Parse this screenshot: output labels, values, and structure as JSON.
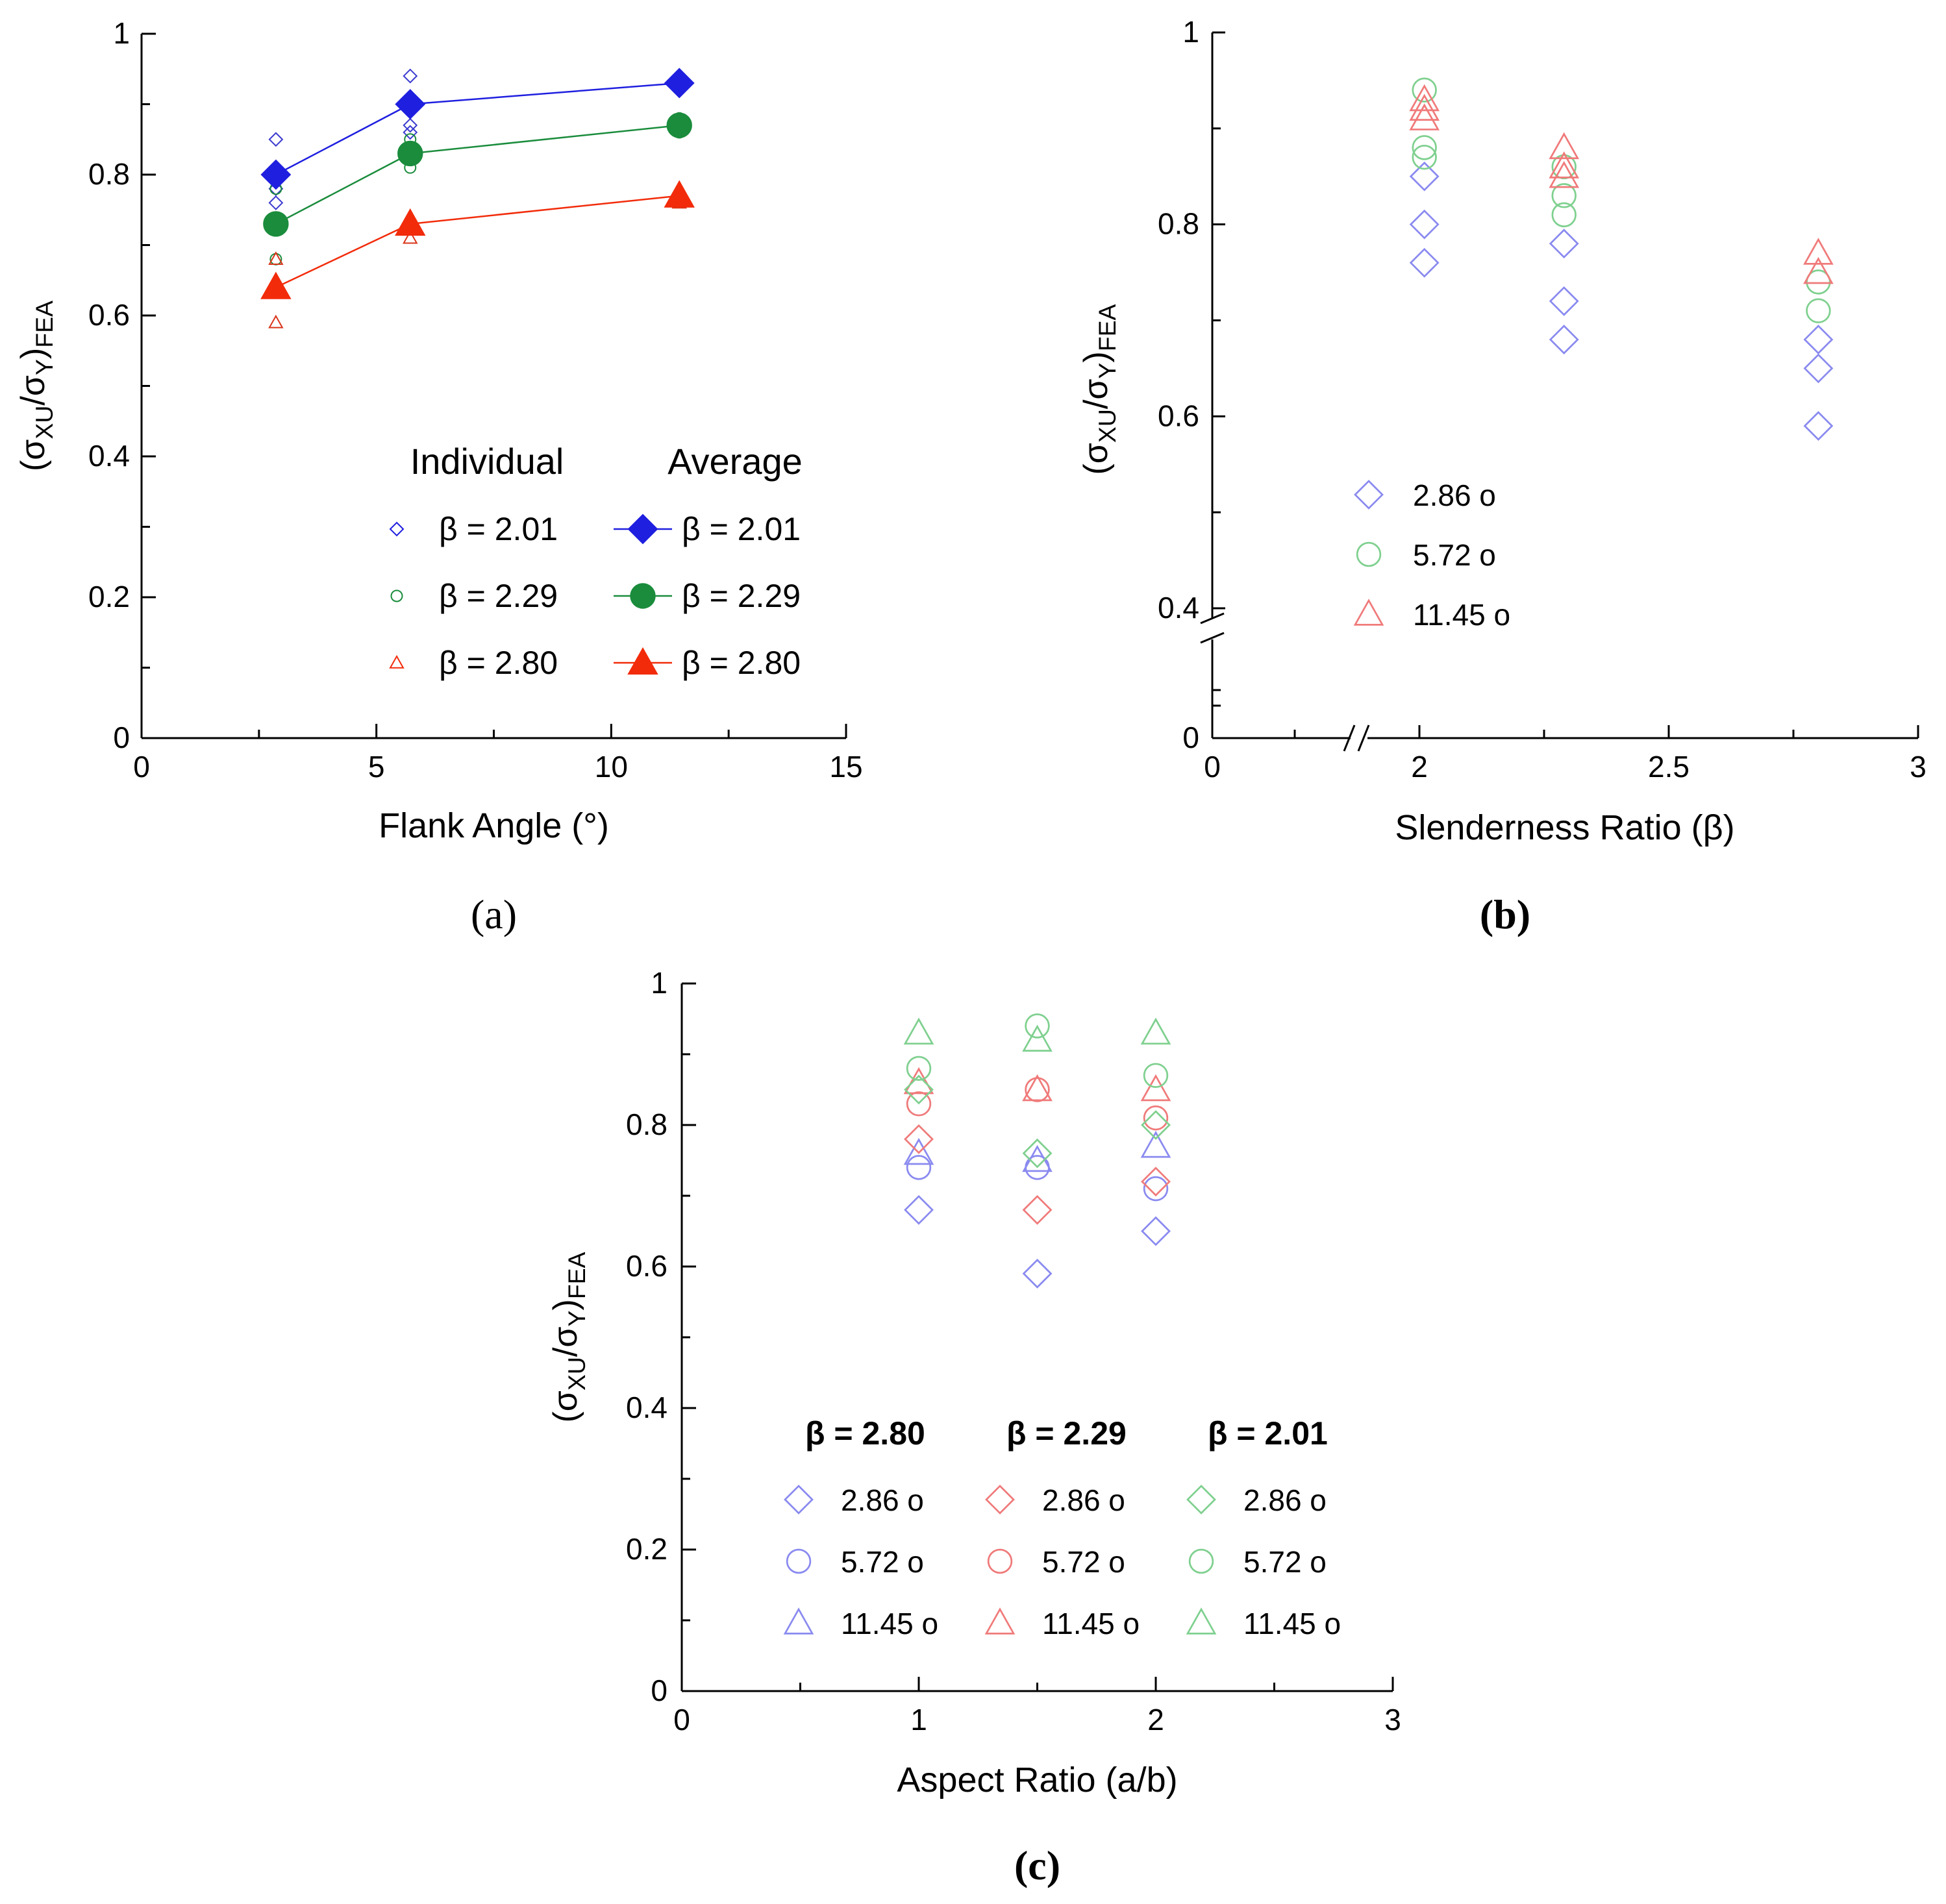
{
  "chart_data": [
    {
      "id": "a",
      "type": "scatter",
      "caption": "(a)",
      "xlabel": "Flank Angle (°)",
      "ylabel_parts": [
        "(σ",
        "XU",
        "/σ",
        "Y",
        ")",
        "FEA"
      ],
      "xlim": [
        0,
        15
      ],
      "ylim": [
        0,
        1
      ],
      "xticks": [
        0,
        5,
        10,
        15
      ],
      "xtick_labels": [
        "0",
        "5",
        "10",
        "15"
      ],
      "yticks": [
        0,
        0.2,
        0.4,
        0.6,
        0.8,
        1
      ],
      "ytick_labels": [
        "0",
        "0.2",
        "0.4",
        "0.6",
        "0.8",
        "1"
      ],
      "legend_headers": [
        "Individual",
        "Average"
      ],
      "legend": [
        {
          "label": "β = 2.01",
          "color": "#1f1fe0",
          "marker": "diamond"
        },
        {
          "label": "β = 2.29",
          "color": "#1a8c3c",
          "marker": "circle"
        },
        {
          "label": "β = 2.80",
          "color": "#f22b0a",
          "marker": "triangle"
        }
      ],
      "series": [
        {
          "name": "β = 2.01 individual",
          "color": "#3b3bd0",
          "marker": "diamond",
          "filled": false,
          "x": [
            2.86,
            2.86,
            2.86,
            5.72,
            5.72,
            5.72,
            11.45,
            11.45
          ],
          "y": [
            0.85,
            0.78,
            0.76,
            0.94,
            0.87,
            0.86,
            0.93,
            0.92
          ]
        },
        {
          "name": "β = 2.29 individual",
          "color": "#1a8c3c",
          "marker": "circle",
          "filled": false,
          "x": [
            2.86,
            2.86,
            5.72,
            5.72,
            5.72,
            11.45,
            11.45,
            11.45
          ],
          "y": [
            0.78,
            0.68,
            0.85,
            0.83,
            0.81,
            0.88,
            0.87,
            0.86
          ]
        },
        {
          "name": "β = 2.80 individual",
          "color": "#d9341a",
          "marker": "triangle",
          "filled": false,
          "x": [
            2.86,
            2.86,
            5.72,
            5.72,
            11.45
          ],
          "y": [
            0.68,
            0.59,
            0.73,
            0.71,
            0.76
          ]
        },
        {
          "name": "β = 2.01 average",
          "color": "#1f1fe0",
          "marker": "diamond",
          "filled": true,
          "line": true,
          "x": [
            2.86,
            5.72,
            11.45
          ],
          "y": [
            0.8,
            0.9,
            0.93
          ]
        },
        {
          "name": "β = 2.29 average",
          "color": "#1a8c3c",
          "marker": "circle",
          "filled": true,
          "line": true,
          "x": [
            2.86,
            5.72,
            11.45
          ],
          "y": [
            0.73,
            0.83,
            0.87
          ]
        },
        {
          "name": "β = 2.80 average",
          "color": "#f22b0a",
          "marker": "triangle",
          "filled": true,
          "line": true,
          "x": [
            2.86,
            5.72,
            11.45
          ],
          "y": [
            0.64,
            0.73,
            0.77
          ]
        }
      ]
    },
    {
      "id": "b",
      "type": "scatter",
      "caption": "(b)",
      "xlabel": "Slenderness Ratio (β)",
      "ylabel_parts": [
        "(σ",
        "XU",
        "/σ",
        "Y",
        ")",
        "FEA"
      ],
      "xlim": [
        0,
        3
      ],
      "ylim": [
        0,
        1
      ],
      "axis_breaks": "broken x-axis between 0 and 2, broken y-axis between 0 and 0.4",
      "xticks": [
        0,
        2,
        2.5,
        3
      ],
      "xtick_labels": [
        "0",
        "2",
        "2.5",
        "3"
      ],
      "yticks": [
        0,
        0.4,
        0.6,
        0.8,
        1
      ],
      "ytick_labels": [
        "0",
        "0.4",
        "0.6",
        "0.8",
        "1"
      ],
      "legend": [
        {
          "label": "2.86 o",
          "color": "#8a8af0",
          "marker": "diamond"
        },
        {
          "label": "5.72 o",
          "color": "#7fd08f",
          "marker": "circle"
        },
        {
          "label": "11.45 o",
          "color": "#f07a7a",
          "marker": "triangle"
        }
      ],
      "series": [
        {
          "name": "2.86°",
          "color": "#8a8af0",
          "marker": "diamond",
          "x": [
            2.01,
            2.01,
            2.01,
            2.29,
            2.29,
            2.29,
            2.8,
            2.8,
            2.8
          ],
          "y": [
            0.85,
            0.8,
            0.76,
            0.78,
            0.72,
            0.68,
            0.68,
            0.65,
            0.59
          ]
        },
        {
          "name": "5.72°",
          "color": "#7fd08f",
          "marker": "circle",
          "x": [
            2.01,
            2.01,
            2.01,
            2.29,
            2.29,
            2.29,
            2.8,
            2.8
          ],
          "y": [
            0.94,
            0.88,
            0.87,
            0.86,
            0.83,
            0.81,
            0.74,
            0.71
          ]
        },
        {
          "name": "11.45°",
          "color": "#f07a7a",
          "marker": "triangle",
          "x": [
            2.01,
            2.01,
            2.01,
            2.29,
            2.29,
            2.29,
            2.8,
            2.8
          ],
          "y": [
            0.93,
            0.92,
            0.91,
            0.88,
            0.86,
            0.85,
            0.77,
            0.75
          ]
        }
      ]
    },
    {
      "id": "c",
      "type": "scatter",
      "caption": "(c)",
      "xlabel": "Aspect Ratio (a/b)",
      "ylabel_parts": [
        "(σ",
        "XU",
        "/σ",
        "Y",
        ")",
        "FEA"
      ],
      "xlim": [
        0,
        3
      ],
      "ylim": [
        0,
        1
      ],
      "xticks": [
        0,
        1,
        2,
        3
      ],
      "xtick_labels": [
        "0",
        "1",
        "2",
        "3"
      ],
      "yticks": [
        0,
        0.2,
        0.4,
        0.6,
        0.8,
        1
      ],
      "ytick_labels": [
        "0",
        "0.2",
        "0.4",
        "0.6",
        "0.8",
        "1"
      ],
      "legend_groups": [
        {
          "title": "β = 2.80",
          "title_color": "#1f1fe0",
          "color": "#8a8af0",
          "items": [
            {
              "label": "2.86 o",
              "marker": "diamond"
            },
            {
              "label": "5.72 o",
              "marker": "circle"
            },
            {
              "label": "11.45 o",
              "marker": "triangle"
            }
          ]
        },
        {
          "title": "β = 2.29",
          "title_color": "#f08a20",
          "color": "#f07a7a",
          "items": [
            {
              "label": "2.86 o",
              "marker": "diamond"
            },
            {
              "label": "5.72 o",
              "marker": "circle"
            },
            {
              "label": "11.45 o",
              "marker": "triangle"
            }
          ]
        },
        {
          "title": "β = 2.01",
          "title_color": "#1a9c3c",
          "color": "#7fd08f",
          "items": [
            {
              "label": "2.86 o",
              "marker": "diamond"
            },
            {
              "label": "5.72 o",
              "marker": "circle"
            },
            {
              "label": "11.45 o",
              "marker": "triangle"
            }
          ]
        }
      ],
      "series": [
        {
          "name": "β = 2.80, 2.86°",
          "color": "#8a8af0",
          "marker": "diamond",
          "x": [
            1,
            1.5,
            2
          ],
          "y": [
            0.68,
            0.59,
            0.65
          ]
        },
        {
          "name": "β = 2.80, 5.72°",
          "color": "#8a8af0",
          "marker": "circle",
          "x": [
            1,
            1.5,
            2
          ],
          "y": [
            0.74,
            0.74,
            0.71
          ]
        },
        {
          "name": "β = 2.80, 11.45°",
          "color": "#8a8af0",
          "marker": "triangle",
          "x": [
            1,
            1.5,
            2
          ],
          "y": [
            0.76,
            0.75,
            0.77
          ]
        },
        {
          "name": "β = 2.29, 2.86°",
          "color": "#f07a7a",
          "marker": "diamond",
          "x": [
            1,
            1.5,
            2
          ],
          "y": [
            0.78,
            0.68,
            0.72
          ]
        },
        {
          "name": "β = 2.29, 5.72°",
          "color": "#f07a7a",
          "marker": "circle",
          "x": [
            1,
            1.5,
            2
          ],
          "y": [
            0.83,
            0.85,
            0.81
          ]
        },
        {
          "name": "β = 2.29, 11.45°",
          "color": "#f07a7a",
          "marker": "triangle",
          "x": [
            1,
            1.5,
            2
          ],
          "y": [
            0.86,
            0.85,
            0.85
          ]
        },
        {
          "name": "β = 2.01, 2.86°",
          "color": "#7fd08f",
          "marker": "diamond",
          "x": [
            1,
            1.5,
            2
          ],
          "y": [
            0.85,
            0.76,
            0.8
          ]
        },
        {
          "name": "β = 2.01, 5.72°",
          "color": "#7fd08f",
          "marker": "circle",
          "x": [
            1,
            1.5,
            2
          ],
          "y": [
            0.88,
            0.94,
            0.87
          ]
        },
        {
          "name": "β = 2.01, 11.45°",
          "color": "#7fd08f",
          "marker": "triangle",
          "x": [
            1,
            1.5,
            2
          ],
          "y": [
            0.93,
            0.92,
            0.93
          ]
        }
      ]
    }
  ]
}
